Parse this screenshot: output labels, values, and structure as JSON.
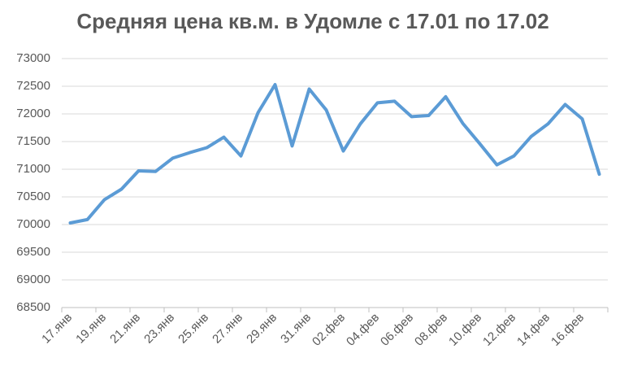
{
  "chart_data": {
    "type": "line",
    "title": "Средняя цена кв.м. в Удомле с 17.01 по 17.02",
    "categories": [
      "17.янв",
      null,
      "19.янв",
      null,
      "21.янв",
      null,
      "23.янв",
      null,
      "25.янв",
      null,
      "27.янв",
      null,
      "29.янв",
      null,
      "31.янв",
      null,
      "02.фев",
      null,
      "04.фев",
      null,
      "06.фев",
      null,
      "08.фев",
      null,
      "10.фев",
      null,
      "12.фев",
      null,
      "14.фев",
      null,
      "16.фев",
      null
    ],
    "series": [
      {
        "name": "Средняя цена",
        "color": "#5b9bd5",
        "values": [
          70030,
          70090,
          70450,
          70640,
          70970,
          70960,
          71200,
          71300,
          71390,
          71580,
          71240,
          72020,
          72530,
          71420,
          72450,
          72070,
          71330,
          71820,
          72200,
          72230,
          71950,
          71970,
          72310,
          71830,
          71460,
          71080,
          71240,
          71590,
          71820,
          72170,
          71910,
          70910
        ]
      }
    ],
    "ylim": [
      68500,
      73000
    ],
    "yticks": [
      68500,
      69000,
      69500,
      70000,
      70500,
      71000,
      71500,
      72000,
      72500,
      73000
    ],
    "grid": true
  }
}
